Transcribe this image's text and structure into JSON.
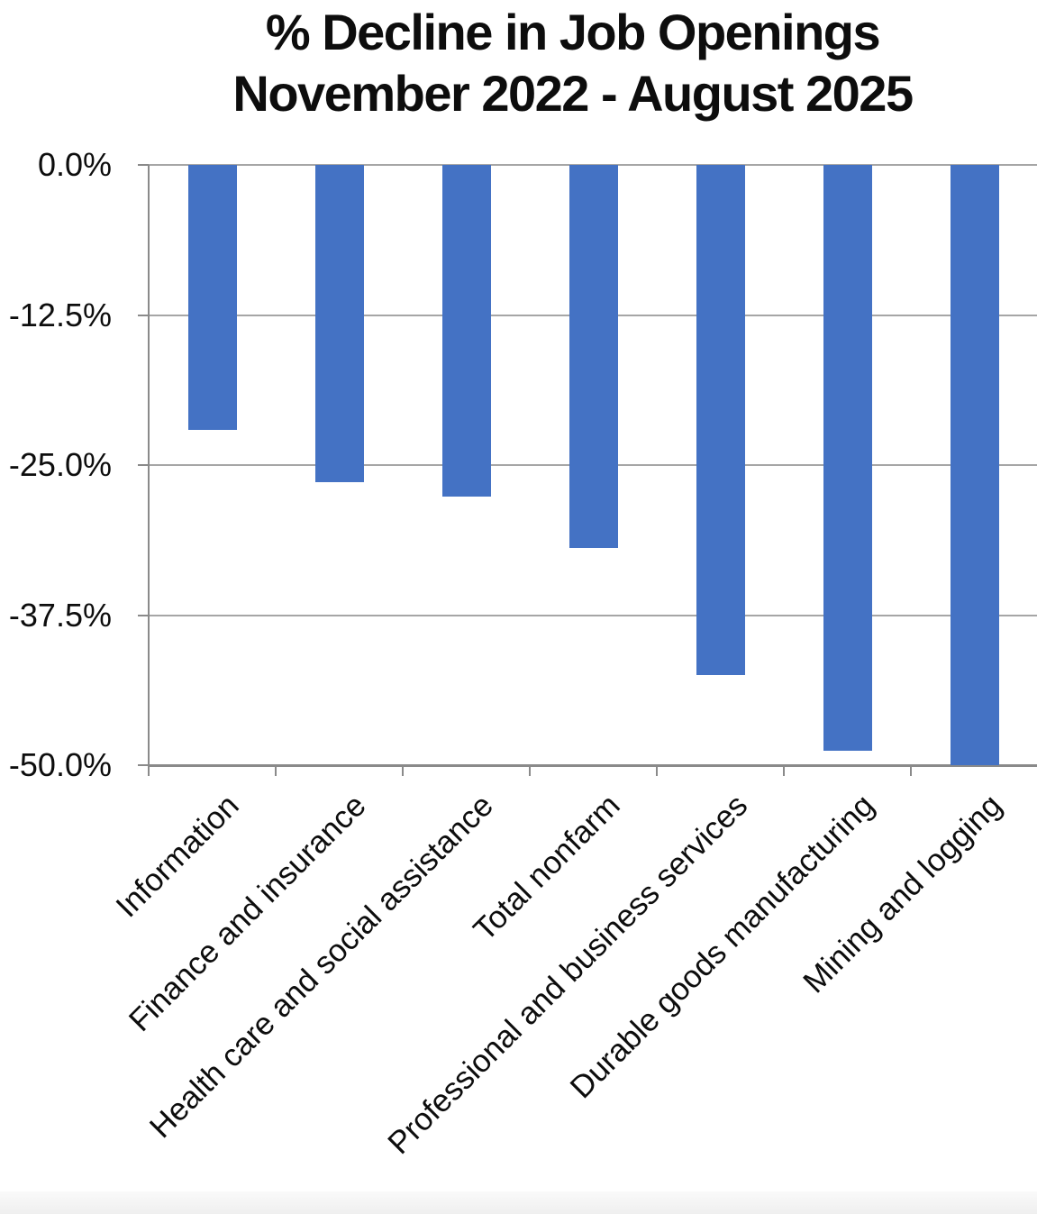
{
  "title": {
    "line1": "% Decline in Job Openings",
    "line2": "November 2022 - August 2025"
  },
  "chart_data": {
    "type": "bar",
    "title": "% Decline in Job Openings November 2022 - August 2025",
    "categories": [
      "Information",
      "Finance and insurance",
      "Health care and social assistance",
      "Total nonfarm",
      "Professional and business services",
      "Durable goods manufacturing",
      "Mining and logging"
    ],
    "values": [
      -22.1,
      -26.4,
      -27.6,
      -31.9,
      -42.5,
      -48.8,
      -50.0
    ],
    "xlabel": "",
    "ylabel": "",
    "ylim": [
      -50,
      0
    ],
    "ytick_values": [
      0,
      -12.5,
      -25,
      -37.5,
      -50
    ],
    "ytick_labels": [
      "0.0%",
      "-12.5%",
      "-25.0%",
      "-37.5%",
      "-50.0%"
    ],
    "grid": true,
    "legend": "none",
    "bar_color": "#4472C4",
    "gridline_color": "#a6a6a6",
    "axis_color": "#8a8a8a",
    "text_color": "#0d0d0d"
  }
}
